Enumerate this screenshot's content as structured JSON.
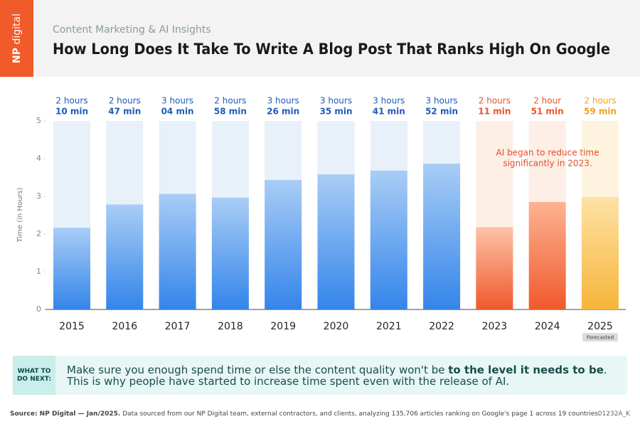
{
  "brand": [
    "NP",
    "digital"
  ],
  "header": {
    "kicker": "Content Marketing & AI Insights",
    "title": "How Long Does It Take To Write A Blog Post That Ranks High On Google"
  },
  "chart_data": {
    "type": "bar",
    "categories": [
      "2015",
      "2016",
      "2017",
      "2018",
      "2019",
      "2020",
      "2021",
      "2022",
      "2023",
      "2024",
      "2025"
    ],
    "values": [
      2.1667,
      2.7833,
      3.0667,
      2.9667,
      3.4333,
      3.5833,
      3.6833,
      3.8667,
      2.1833,
      2.85,
      2.9833
    ],
    "value_labels": [
      [
        "2 hours",
        "10 min"
      ],
      [
        "2 hours",
        "47 min"
      ],
      [
        "3 hours",
        "04 min"
      ],
      [
        "2 hours",
        "58 min"
      ],
      [
        "3 hours",
        "26 min"
      ],
      [
        "3 hours",
        "35 min"
      ],
      [
        "3 hours",
        "41 min"
      ],
      [
        "3 hours",
        "52 min"
      ],
      [
        "2 hours",
        "11 min"
      ],
      [
        "2 hour",
        "51 min"
      ],
      [
        "2 hours",
        "59 min"
      ]
    ],
    "colors": [
      [
        "#a9cdf6",
        "#3485ea"
      ],
      [
        "#a9cdf6",
        "#3485ea"
      ],
      [
        "#a9cdf6",
        "#3485ea"
      ],
      [
        "#a9cdf6",
        "#3485ea"
      ],
      [
        "#a9cdf6",
        "#3485ea"
      ],
      [
        "#a9cdf6",
        "#3485ea"
      ],
      [
        "#a9cdf6",
        "#3485ea"
      ],
      [
        "#a9cdf6",
        "#3485ea"
      ],
      [
        "#fdc2a8",
        "#f0592c"
      ],
      [
        "#fdb393",
        "#f0592c"
      ],
      [
        "#fde2a6",
        "#f7b53a"
      ]
    ],
    "label_colors": [
      "#1d5cb8",
      "#1d5cb8",
      "#1d5cb8",
      "#1d5cb8",
      "#1d5cb8",
      "#1d5cb8",
      "#1d5cb8",
      "#1d5cb8",
      "#e8552a",
      "#e8552a",
      "#f0a11e"
    ],
    "column_colors": [
      "#e8f0fa",
      "#e8f0fa",
      "#e8f0fa",
      "#e8f0fa",
      "#e8f0fa",
      "#e8f0fa",
      "#e8f0fa",
      "#e8f0fa",
      "#fdeee6",
      "#fdeee6",
      "#fdf3df"
    ],
    "ylim": [
      0,
      5
    ],
    "yticks": [
      0,
      1,
      2,
      3,
      4,
      5
    ],
    "y_label": "Time (in Hours)",
    "annotation": [
      "AI began to reduce time",
      "significantly in 2023."
    ],
    "badge": "Forecasted"
  },
  "callout": {
    "label": [
      "WHAT TO",
      "DO NEXT:"
    ],
    "message": [
      "Make sure you enough spend time or else the content quality won't be ",
      "to the level it needs to be",
      ". This is why people have started to increase time spent even with the release of AI."
    ]
  },
  "footer": {
    "source": "Source: NP Digital — Jan/2025.",
    "note": " Data sourced from our NP Digital team, external contractors, and clients, analyzing 135,706 articles ranking on Google's page 1 across 19 countries.",
    "code": "01232A_K"
  }
}
